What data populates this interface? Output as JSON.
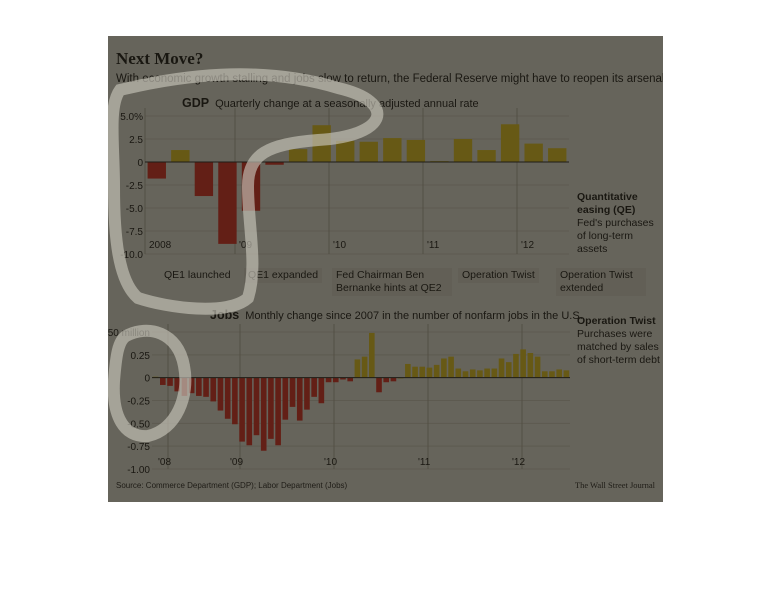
{
  "header": {
    "title": "Next Move?",
    "subtitle": "With economic growth stalling and jobs slow to return, the Federal Reserve might have to reopen its arsenal."
  },
  "events": [
    {
      "label": "QE1 launched"
    },
    {
      "label": "QE1 expanded"
    },
    {
      "label": "Fed Chairman Ben Bernanke hints at QE2"
    },
    {
      "label": "Operation Twist"
    },
    {
      "label": "Operation Twist extended"
    }
  ],
  "sidebar": {
    "qe_title": "Quantitative easing (QE)",
    "qe_desc": "Fed's purchases of long-term assets",
    "twist_title": "Operation Twist",
    "twist_desc": "Purchases were matched by sales of short-term debt"
  },
  "footer": {
    "source": "Source: Commerce Department (GDP); Labor Department (Jobs)",
    "credit": "The Wall Street Journal"
  },
  "colors": {
    "negative": "#e8281e",
    "positive": "#f3d11c",
    "gridline": "#d6d2c6"
  },
  "chart_data": [
    {
      "type": "bar",
      "title": "GDP",
      "subtitle": "Quarterly change at a seasonally adjusted annual rate",
      "ylim": [
        -10,
        5
      ],
      "y_ticks": [
        "5.0%",
        "2.5",
        "0",
        "-2.5",
        "-5.0",
        "-7.5",
        "-10.0"
      ],
      "y_tick_values": [
        5,
        2.5,
        0,
        -2.5,
        -5,
        -7.5,
        -10
      ],
      "x_tick_labels": [
        "2008",
        "'09",
        "'10",
        "'11",
        "'12"
      ],
      "grid": true,
      "categories": [
        "2008 Q1",
        "2008 Q2",
        "2008 Q3",
        "2008 Q4",
        "2009 Q1",
        "2009 Q2",
        "2009 Q3",
        "2009 Q4",
        "2010 Q1",
        "2010 Q2",
        "2010 Q3",
        "2010 Q4",
        "2011 Q1",
        "2011 Q2",
        "2011 Q3",
        "2011 Q4",
        "2012 Q1",
        "2012 Q2"
      ],
      "values": [
        -1.8,
        1.3,
        -3.7,
        -8.9,
        -5.3,
        -0.3,
        1.4,
        4.0,
        2.3,
        2.2,
        2.6,
        2.4,
        0.1,
        2.5,
        1.3,
        4.1,
        2.0,
        1.5
      ]
    },
    {
      "type": "bar",
      "title": "Jobs",
      "subtitle": "Monthly change since 2007 in the number of nonfarm jobs in the U.S.",
      "ylim": [
        -1.0,
        0.5
      ],
      "y_ticks": [
        "0.50 million",
        "0.25",
        "0",
        "-0.25",
        "-0.50",
        "-0.75",
        "-1.00"
      ],
      "y_tick_values": [
        0.5,
        0.25,
        0,
        -0.25,
        -0.5,
        -0.75,
        -1.0
      ],
      "x_tick_labels": [
        "'08",
        "'09",
        "'10",
        "'11",
        "'12"
      ],
      "grid": true,
      "values": [
        0.01,
        -0.08,
        -0.09,
        -0.15,
        -0.2,
        -0.17,
        -0.2,
        -0.21,
        -0.26,
        -0.36,
        -0.45,
        -0.51,
        -0.7,
        -0.74,
        -0.63,
        -0.8,
        -0.67,
        -0.74,
        -0.46,
        -0.32,
        -0.47,
        -0.35,
        -0.21,
        -0.28,
        -0.05,
        -0.05,
        -0.02,
        -0.04,
        0.2,
        0.23,
        0.49,
        -0.16,
        -0.05,
        -0.04,
        0.0,
        0.15,
        0.12,
        0.12,
        0.11,
        0.14,
        0.21,
        0.23,
        0.1,
        0.07,
        0.09,
        0.08,
        0.1,
        0.1,
        0.21,
        0.17,
        0.26,
        0.31,
        0.27,
        0.23,
        0.07,
        0.07,
        0.09,
        0.08
      ]
    }
  ]
}
